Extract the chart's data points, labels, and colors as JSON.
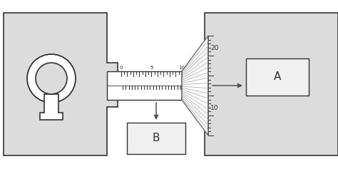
{
  "bg_color": "#dcdcdc",
  "fig_bg": "#ffffff",
  "box_fill": "#f0f0f0",
  "line_color": "#333333",
  "arrow_color": "#555555",
  "sleeve_labels": [
    "0",
    "5",
    "10"
  ],
  "thimble_top_label": "20",
  "thimble_bot_label": "10",
  "box_A_label": "A",
  "box_B_label": "B",
  "fig_w": 4.74,
  "fig_h": 2.37,
  "dpi": 100
}
